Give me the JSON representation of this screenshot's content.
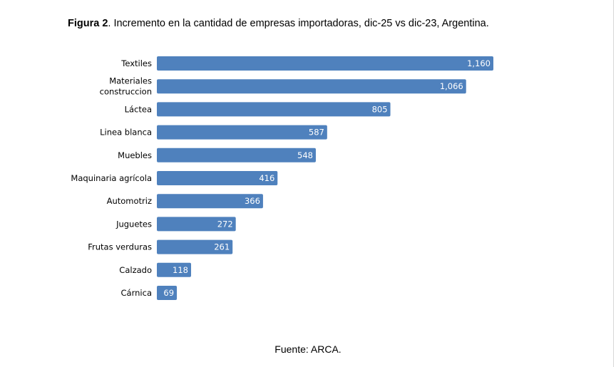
{
  "figure": {
    "label": "Figura 2",
    "caption": ". Incremento en la cantidad de empresas importadoras, dic-25 vs dic-23, Argentina."
  },
  "source": "Fuente: ARCA.",
  "colors": {
    "bar": "#4f81bd"
  },
  "chart_data": {
    "type": "bar",
    "orientation": "horizontal",
    "title": "Incremento en la cantidad de empresas importadoras, dic-25 vs dic-23, Argentina.",
    "xlabel": "",
    "ylabel": "",
    "grid": false,
    "categories": [
      [
        "Textiles"
      ],
      [
        "Materiales",
        "construccion"
      ],
      [
        "Láctea"
      ],
      [
        "Linea blanca"
      ],
      [
        "Muebles"
      ],
      [
        "Maquinaria agrícola"
      ],
      [
        "Automotriz"
      ],
      [
        "Juguetes"
      ],
      [
        "Frutas verduras"
      ],
      [
        "Calzado"
      ],
      [
        "Cárnica"
      ]
    ],
    "values": [
      1160,
      1066,
      805,
      587,
      548,
      416,
      366,
      272,
      261,
      118,
      69
    ],
    "value_labels": [
      "1,160",
      "1,066",
      "805",
      "587",
      "548",
      "416",
      "366",
      "272",
      "261",
      "118",
      "69"
    ],
    "xlim": [
      0,
      1160
    ]
  }
}
